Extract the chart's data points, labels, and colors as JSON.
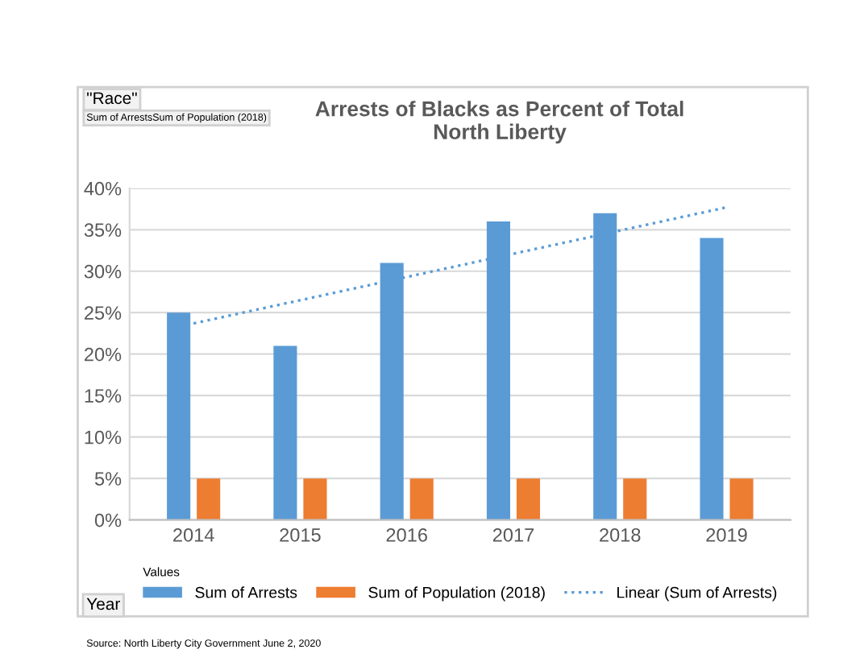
{
  "chart_data": {
    "type": "bar",
    "title": "Arrests of Blacks as Percent of Total\nNorth Liberty",
    "xlabel": "Year",
    "legend_title": "Values",
    "categories": [
      "2014",
      "2015",
      "2016",
      "2017",
      "2018",
      "2019"
    ],
    "series": [
      {
        "name": "Sum of Arrests",
        "color": "#5b9bd5",
        "values": [
          25,
          21,
          31,
          36,
          37,
          34
        ]
      },
      {
        "name": "Sum of Population (2018)",
        "color": "#ed7d31",
        "values": [
          5,
          5,
          5,
          5,
          5,
          5
        ]
      },
      {
        "name": "Linear (Sum of Arrests)",
        "type": "line",
        "line_style": "dotted",
        "color": "#5b9bd5",
        "values": [
          23.7,
          26.5,
          29.3,
          32.1,
          34.9,
          37.7
        ]
      }
    ],
    "ylim": [
      0,
      40
    ],
    "yticks": [
      {
        "value": 0,
        "label": "0%"
      },
      {
        "value": 5,
        "label": "5%"
      },
      {
        "value": 10,
        "label": "10%"
      },
      {
        "value": 15,
        "label": "15%"
      },
      {
        "value": 20,
        "label": "20%"
      },
      {
        "value": 25,
        "label": "25%"
      },
      {
        "value": 30,
        "label": "30%"
      },
      {
        "value": 35,
        "label": "35%"
      },
      {
        "value": 40,
        "label": "40%"
      }
    ],
    "grid": "y",
    "legend": "bottom",
    "annotations": [
      "\"Race\"",
      "Sum of ArrestsSum of Population (2018)",
      "Source: North Liberty City Government June 2, 2020"
    ]
  }
}
